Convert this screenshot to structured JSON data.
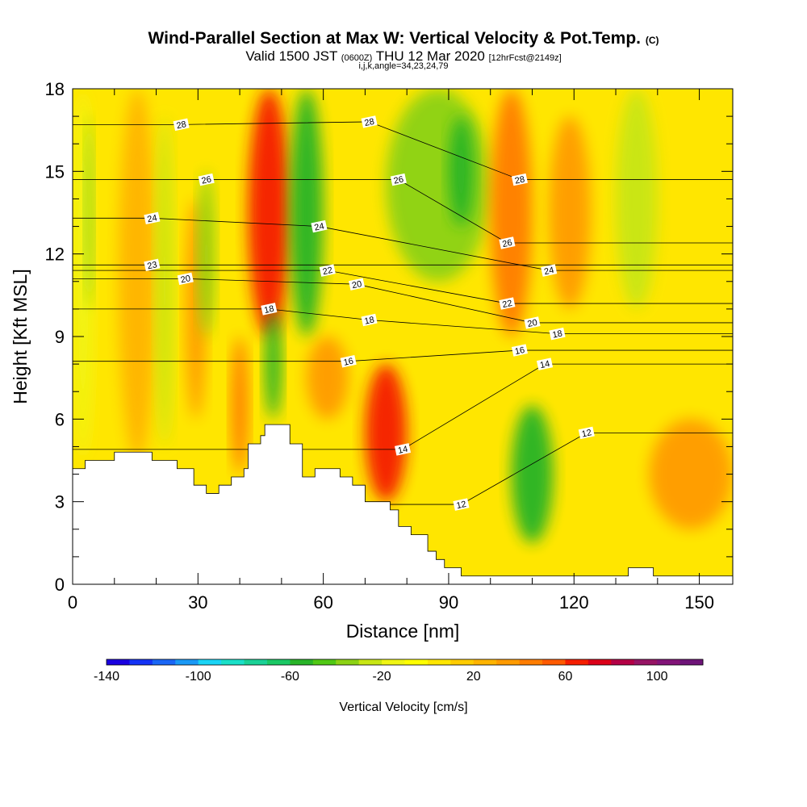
{
  "header": {
    "title": "Wind-Parallel Section at Max W: Vertical Velocity & Pot.Temp.",
    "copyright": "(C)",
    "subtitle_valid": "Valid 1500 JST",
    "subtitle_zulu": "(0600Z)",
    "subtitle_date": "THU 12 Mar 2020",
    "subtitle_fcst": "[12hrFcst@2149z]",
    "indices": "i,j,k,angle=34,23,24,79"
  },
  "chart_data": {
    "type": "heatmap",
    "xlabel": "Distance [nm]",
    "ylabel": "Height [Kft MSL]",
    "xlim": [
      0,
      158
    ],
    "ylim": [
      0,
      18
    ],
    "x_ticks": [
      0,
      30,
      60,
      90,
      120,
      150
    ],
    "y_ticks": [
      0,
      3,
      6,
      9,
      12,
      15,
      18
    ],
    "colorbar": {
      "label": "Vertical Velocity [cm/s]",
      "ticks": [
        -140,
        -100,
        -60,
        -20,
        20,
        60,
        100
      ],
      "range": [
        -140,
        120
      ],
      "step": 10,
      "colors": [
        "#1a00e0",
        "#1433f5",
        "#1a66f5",
        "#1a99f5",
        "#1ad4f5",
        "#1ae0c8",
        "#1ad196",
        "#1ac864",
        "#28b428",
        "#50c814",
        "#8cd214",
        "#c8e614",
        "#f0f514",
        "#ffff00",
        "#ffe600",
        "#ffcc00",
        "#ffb400",
        "#ff9b00",
        "#ff7d00",
        "#ff5a00",
        "#f51e00",
        "#dc0019",
        "#b40046",
        "#961464",
        "#821478",
        "#6e1478"
      ]
    },
    "velocity_cells_cm_s": [
      {
        "x_range": [
          0,
          5
        ],
        "y_range": [
          4.5,
          18
        ],
        "value": -15
      },
      {
        "x_range": [
          3,
          5
        ],
        "y_range": [
          10,
          17
        ],
        "value": -35
      },
      {
        "x_range": [
          11,
          20
        ],
        "y_range": [
          4.5,
          18
        ],
        "value": 25
      },
      {
        "x_range": [
          20,
          24
        ],
        "y_range": [
          5,
          17
        ],
        "value": -25
      },
      {
        "x_range": [
          27,
          32
        ],
        "y_range": [
          6,
          14
        ],
        "value": 35
      },
      {
        "x_range": [
          30,
          34
        ],
        "y_range": [
          9,
          15
        ],
        "value": -35
      },
      {
        "x_range": [
          38,
          42
        ],
        "y_range": [
          4,
          9
        ],
        "value": 40
      },
      {
        "x_range": [
          42,
          52
        ],
        "y_range": [
          9,
          18
        ],
        "value": 65
      },
      {
        "x_range": [
          46,
          50
        ],
        "y_range": [
          6,
          10
        ],
        "value": -55
      },
      {
        "x_range": [
          52,
          60
        ],
        "y_range": [
          9,
          18
        ],
        "value": -60
      },
      {
        "x_range": [
          56,
          66
        ],
        "y_range": [
          6,
          9
        ],
        "value": 35
      },
      {
        "x_range": [
          70,
          80
        ],
        "y_range": [
          3,
          8
        ],
        "value": 60
      },
      {
        "x_range": [
          75,
          100
        ],
        "y_range": [
          11,
          18
        ],
        "value": -40
      },
      {
        "x_range": [
          90,
          96
        ],
        "y_range": [
          13,
          17
        ],
        "value": -55
      },
      {
        "x_range": [
          100,
          110
        ],
        "y_range": [
          9,
          18
        ],
        "value": 45
      },
      {
        "x_range": [
          105,
          115
        ],
        "y_range": [
          1.5,
          6.5
        ],
        "value": -55
      },
      {
        "x_range": [
          114,
          124
        ],
        "y_range": [
          10,
          17
        ],
        "value": 35
      },
      {
        "x_range": [
          130,
          140
        ],
        "y_range": [
          10,
          18
        ],
        "value": -30
      },
      {
        "x_range": [
          138,
          158
        ],
        "y_range": [
          2,
          6
        ],
        "value": 30
      }
    ],
    "potential_temperature_contour_labels": [
      {
        "label": "28",
        "x": 26,
        "y": 16.7
      },
      {
        "label": "28",
        "x": 71,
        "y": 16.8
      },
      {
        "label": "28",
        "x": 107,
        "y": 14.7
      },
      {
        "label": "26",
        "x": 32,
        "y": 14.7
      },
      {
        "label": "26",
        "x": 78,
        "y": 14.7
      },
      {
        "label": "26",
        "x": 104,
        "y": 12.4
      },
      {
        "label": "24",
        "x": 19,
        "y": 13.3
      },
      {
        "label": "24",
        "x": 59,
        "y": 13.0
      },
      {
        "label": "24",
        "x": 114,
        "y": 11.4
      },
      {
        "label": "23",
        "x": 19,
        "y": 11.6
      },
      {
        "label": "22",
        "x": 61,
        "y": 11.4
      },
      {
        "label": "22",
        "x": 104,
        "y": 10.2
      },
      {
        "label": "20",
        "x": 27,
        "y": 11.1
      },
      {
        "label": "20",
        "x": 68,
        "y": 10.9
      },
      {
        "label": "20",
        "x": 110,
        "y": 9.5
      },
      {
        "label": "18",
        "x": 47,
        "y": 10.0
      },
      {
        "label": "18",
        "x": 71,
        "y": 9.6
      },
      {
        "label": "18",
        "x": 116,
        "y": 9.1
      },
      {
        "label": "16",
        "x": 66,
        "y": 8.1
      },
      {
        "label": "16",
        "x": 107,
        "y": 8.5
      },
      {
        "label": "14",
        "x": 79,
        "y": 4.9
      },
      {
        "label": "14",
        "x": 113,
        "y": 8.0
      },
      {
        "label": "12",
        "x": 93,
        "y": 2.9
      },
      {
        "label": "12",
        "x": 123,
        "y": 5.5
      }
    ],
    "terrain_kft": [
      {
        "x": 0,
        "y": 4.2
      },
      {
        "x": 3,
        "y": 4.5
      },
      {
        "x": 10,
        "y": 4.8
      },
      {
        "x": 19,
        "y": 4.5
      },
      {
        "x": 25,
        "y": 4.2
      },
      {
        "x": 29,
        "y": 3.6
      },
      {
        "x": 32,
        "y": 3.3
      },
      {
        "x": 35,
        "y": 3.6
      },
      {
        "x": 38,
        "y": 3.9
      },
      {
        "x": 41,
        "y": 4.2
      },
      {
        "x": 42,
        "y": 5.1
      },
      {
        "x": 45,
        "y": 5.4
      },
      {
        "x": 46,
        "y": 5.8
      },
      {
        "x": 52,
        "y": 5.1
      },
      {
        "x": 55,
        "y": 3.9
      },
      {
        "x": 58,
        "y": 4.2
      },
      {
        "x": 64,
        "y": 3.9
      },
      {
        "x": 67,
        "y": 3.6
      },
      {
        "x": 70,
        "y": 3.0
      },
      {
        "x": 76,
        "y": 2.7
      },
      {
        "x": 78,
        "y": 2.1
      },
      {
        "x": 81,
        "y": 1.8
      },
      {
        "x": 85,
        "y": 1.2
      },
      {
        "x": 87,
        "y": 0.9
      },
      {
        "x": 89,
        "y": 0.6
      },
      {
        "x": 93,
        "y": 0.3
      },
      {
        "x": 133,
        "y": 0.6
      },
      {
        "x": 139,
        "y": 0.3
      },
      {
        "x": 158,
        "y": 0.3
      }
    ],
    "grid": false,
    "legend": "bottom"
  }
}
